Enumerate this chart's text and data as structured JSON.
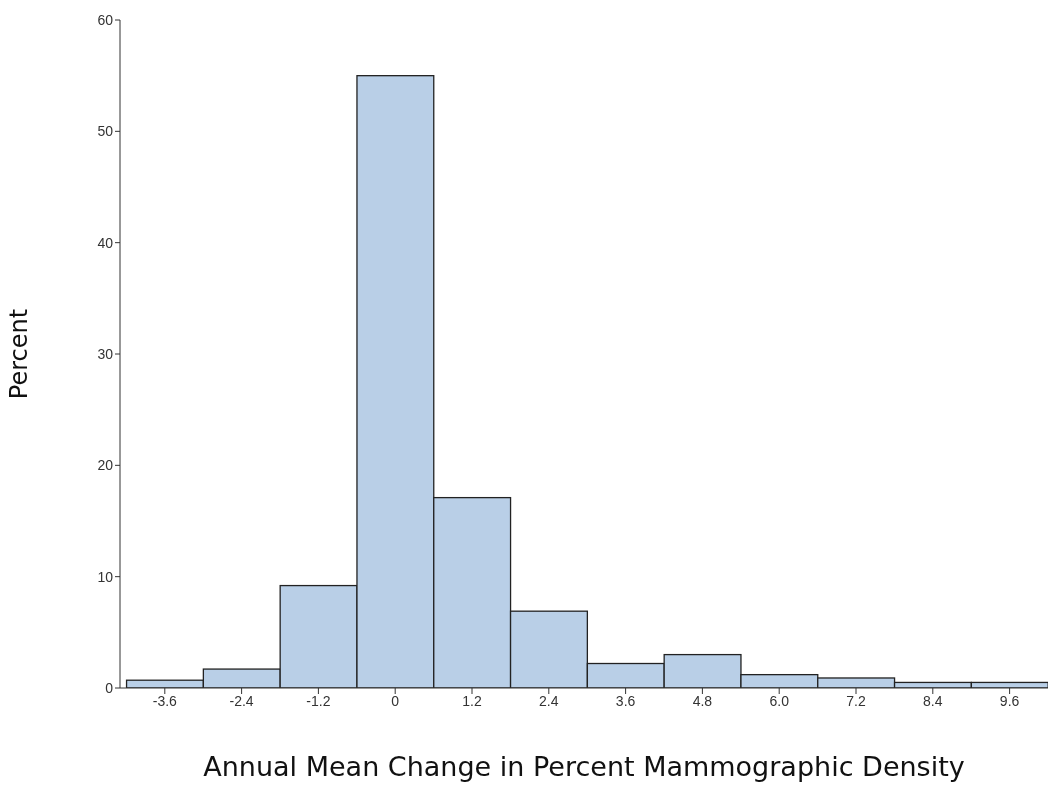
{
  "chart_data": {
    "type": "histogram",
    "xlabel": "Annual Mean Change in Percent Mammographic Density",
    "ylabel": "Percent",
    "bins": [
      -4.2,
      -3.0,
      -1.8,
      -0.6,
      0.6,
      1.8,
      3.0,
      4.2,
      5.4,
      6.6,
      7.8,
      9.0,
      10.2
    ],
    "values": [
      0.7,
      1.7,
      9.2,
      55,
      17.1,
      6.9,
      2.2,
      3.0,
      1.2,
      0.9,
      0.5,
      0.5
    ],
    "color": "#b9cfe7",
    "xlim": [
      -4.3,
      10.2
    ],
    "xticks": [
      -3.6,
      -2.4,
      -1.2,
      0,
      1.2,
      2.4,
      3.6,
      4.8,
      {
        "value": 6,
        "label": "6.0"
      },
      7.2,
      8.4,
      9.6
    ],
    "ylim": [
      0,
      60
    ],
    "yticks": [
      0,
      10,
      20,
      30,
      40,
      50,
      60
    ]
  }
}
